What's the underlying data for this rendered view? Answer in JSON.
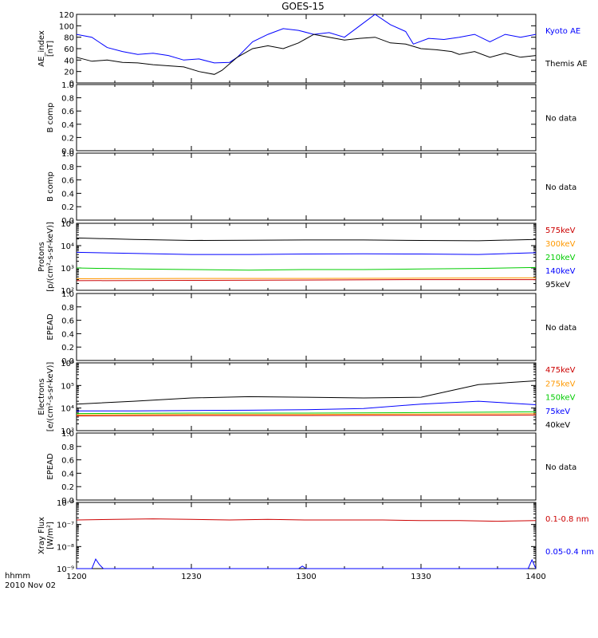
{
  "title": "GOES-15",
  "time_axis": {
    "ticks": [
      "1200",
      "1230",
      "1300",
      "1330",
      "1400"
    ],
    "label_line1": "hhmm",
    "label_line2": "2010 Nov 02",
    "range_minutes": [
      0,
      120
    ]
  },
  "colors": {
    "black": "#000000",
    "blue": "#0000ff",
    "red": "#cc0000",
    "orange": "#ff9900",
    "green": "#00cc00"
  },
  "chart_data": [
    {
      "type": "line",
      "ylabel": [
        "AE_index",
        "[nT]"
      ],
      "ylim": [
        0,
        120
      ],
      "yticks": [
        "0",
        "20",
        "40",
        "60",
        "80",
        "100",
        "120"
      ],
      "series": [
        {
          "name": "Kyoto AE",
          "color": "#0000ff",
          "x": [
            0,
            4,
            8,
            12,
            16,
            20,
            24,
            28,
            32,
            36,
            40,
            42,
            46,
            50,
            54,
            58,
            62,
            66,
            70,
            74,
            78,
            82,
            86,
            88,
            92,
            96,
            100,
            104,
            108,
            112,
            116,
            120
          ],
          "y": [
            85,
            80,
            62,
            55,
            50,
            52,
            48,
            40,
            42,
            35,
            36,
            45,
            72,
            85,
            95,
            92,
            85,
            88,
            80,
            100,
            120,
            102,
            90,
            68,
            78,
            76,
            80,
            85,
            72,
            85,
            80,
            85
          ]
        },
        {
          "name": "Themis AE",
          "color": "#000000",
          "x": [
            0,
            4,
            8,
            12,
            16,
            20,
            24,
            28,
            32,
            36,
            38,
            42,
            46,
            50,
            54,
            58,
            62,
            66,
            70,
            74,
            78,
            82,
            86,
            90,
            94,
            98,
            100,
            104,
            108,
            112,
            116,
            120
          ],
          "y": [
            45,
            38,
            40,
            36,
            35,
            32,
            30,
            28,
            20,
            15,
            22,
            45,
            60,
            65,
            60,
            70,
            85,
            80,
            75,
            78,
            80,
            70,
            68,
            60,
            58,
            55,
            50,
            55,
            45,
            52,
            45,
            48
          ]
        }
      ]
    },
    {
      "type": "line",
      "ylabel": [
        "B comp"
      ],
      "ylim": [
        0,
        1.0
      ],
      "yticks": [
        "0.0",
        "0.2",
        "0.4",
        "0.6",
        "0.8",
        "1.0"
      ],
      "note": "No data",
      "series": []
    },
    {
      "type": "line",
      "ylabel": [
        "B comp"
      ],
      "ylim": [
        0,
        1.0
      ],
      "yticks": [
        "0.0",
        "0.2",
        "0.4",
        "0.6",
        "0.8",
        "1.0"
      ],
      "note": "No data",
      "series": []
    },
    {
      "type": "line",
      "log": true,
      "ylabel": [
        "Protons",
        "[p/(cm²-s-sr-keV)]"
      ],
      "ylim": [
        100,
        100000
      ],
      "yticks": [
        "10²",
        "10³",
        "10⁴",
        "10⁵"
      ],
      "series": [
        {
          "name": "575keV",
          "color": "#cc0000",
          "x": [
            0,
            30,
            60,
            90,
            120
          ],
          "y": [
            270,
            280,
            290,
            300,
            300
          ]
        },
        {
          "name": "300keV",
          "color": "#ff9900",
          "x": [
            0,
            30,
            60,
            90,
            120
          ],
          "y": [
            330,
            340,
            340,
            350,
            360
          ]
        },
        {
          "name": "210keV",
          "color": "#00cc00",
          "x": [
            0,
            15,
            30,
            45,
            60,
            75,
            90,
            105,
            120
          ],
          "y": [
            1000,
            900,
            850,
            800,
            850,
            850,
            900,
            950,
            1050
          ]
        },
        {
          "name": "140keV",
          "color": "#0000ff",
          "x": [
            0,
            15,
            30,
            45,
            60,
            75,
            90,
            105,
            120
          ],
          "y": [
            5000,
            4500,
            4000,
            4000,
            4200,
            4300,
            4200,
            4000,
            4800
          ]
        },
        {
          "name": "95keV",
          "color": "#000000",
          "x": [
            0,
            15,
            30,
            45,
            60,
            75,
            90,
            105,
            120
          ],
          "y": [
            22000,
            19000,
            17000,
            17500,
            18000,
            18000,
            17000,
            16500,
            19000
          ]
        }
      ]
    },
    {
      "type": "line",
      "ylabel": [
        "EPEAD"
      ],
      "ylim": [
        0,
        1.0
      ],
      "yticks": [
        "0.0",
        "0.2",
        "0.4",
        "0.6",
        "0.8",
        "1.0"
      ],
      "note": "No data",
      "series": []
    },
    {
      "type": "line",
      "log": true,
      "ylabel": [
        "Electrons",
        "[e/(cm²-s-sr-keV)]"
      ],
      "ylim": [
        1000,
        1000000
      ],
      "yticks": [
        "10³",
        "10⁴",
        "10⁵",
        "10⁶"
      ],
      "series": [
        {
          "name": "475keV",
          "color": "#cc0000",
          "x": [
            0,
            30,
            60,
            90,
            120
          ],
          "y": [
            4500,
            4700,
            4700,
            4800,
            4900
          ]
        },
        {
          "name": "275keV",
          "color": "#ff9900",
          "x": [
            0,
            30,
            60,
            90,
            120
          ],
          "y": [
            5000,
            5200,
            5200,
            5400,
            5600
          ]
        },
        {
          "name": "150keV",
          "color": "#00cc00",
          "x": [
            0,
            30,
            60,
            90,
            120
          ],
          "y": [
            5700,
            6000,
            6000,
            6300,
            6800
          ]
        },
        {
          "name": "75keV",
          "color": "#0000ff",
          "x": [
            0,
            15,
            30,
            45,
            60,
            75,
            90,
            105,
            120
          ],
          "y": [
            7500,
            7500,
            7800,
            8000,
            8500,
            9500,
            15000,
            20000,
            14000
          ]
        },
        {
          "name": "40keV",
          "color": "#000000",
          "x": [
            0,
            15,
            30,
            45,
            60,
            75,
            90,
            105,
            120
          ],
          "y": [
            15000,
            20000,
            28000,
            32000,
            30000,
            28000,
            30000,
            110000,
            160000
          ]
        }
      ]
    },
    {
      "type": "line",
      "ylabel": [
        "EPEAD"
      ],
      "ylim": [
        0,
        1.0
      ],
      "yticks": [
        "0.0",
        "0.2",
        "0.4",
        "0.6",
        "0.8",
        "1.0"
      ],
      "note": "No data",
      "series": []
    },
    {
      "type": "line",
      "log": true,
      "ylabel": [
        "Xray Flux",
        "[W/m²]"
      ],
      "ylim": [
        1e-09,
        1e-06
      ],
      "yticks": [
        "10⁻⁹",
        "10⁻⁸",
        "10⁻⁷",
        "10⁻⁶"
      ],
      "series": [
        {
          "name": "0.1-0.8 nm",
          "color": "#cc0000",
          "x": [
            0,
            10,
            20,
            30,
            40,
            50,
            60,
            70,
            80,
            90,
            100,
            110,
            120
          ],
          "y": [
            1.6e-07,
            1.7e-07,
            1.8e-07,
            1.7e-07,
            1.6e-07,
            1.7e-07,
            1.6e-07,
            1.6e-07,
            1.6e-07,
            1.5e-07,
            1.5e-07,
            1.4e-07,
            1.5e-07
          ]
        },
        {
          "name": "0.05-0.4 nm",
          "color": "#0000ff",
          "x": [
            0,
            4,
            5,
            6,
            7,
            40,
            58,
            59,
            60,
            90,
            112,
            118,
            119,
            120
          ],
          "y": [
            1e-09,
            1e-09,
            2.7e-09,
            1.5e-09,
            1e-09,
            1e-09,
            1e-09,
            1.3e-09,
            1e-09,
            1e-09,
            1e-09,
            1e-09,
            2.5e-09,
            1e-09
          ]
        }
      ]
    }
  ]
}
